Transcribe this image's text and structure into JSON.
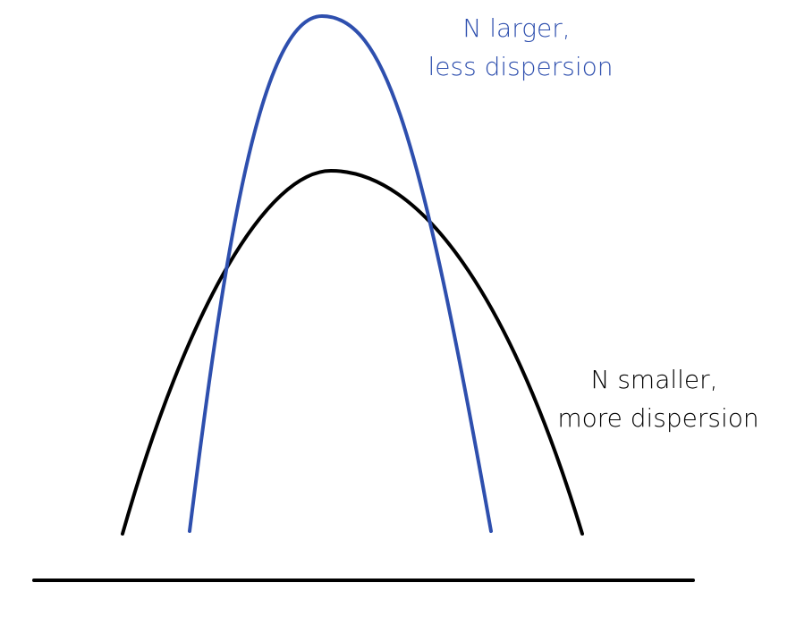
{
  "diagram": {
    "curves": [
      {
        "id": "narrow",
        "color": "#2e4fae",
        "label_lines": [
          "N larger,",
          "less dispersion"
        ]
      },
      {
        "id": "wide",
        "color": "#000000",
        "label_lines": [
          "N smaller,",
          "more dispersion"
        ]
      }
    ],
    "baseline_color": "#000000"
  }
}
